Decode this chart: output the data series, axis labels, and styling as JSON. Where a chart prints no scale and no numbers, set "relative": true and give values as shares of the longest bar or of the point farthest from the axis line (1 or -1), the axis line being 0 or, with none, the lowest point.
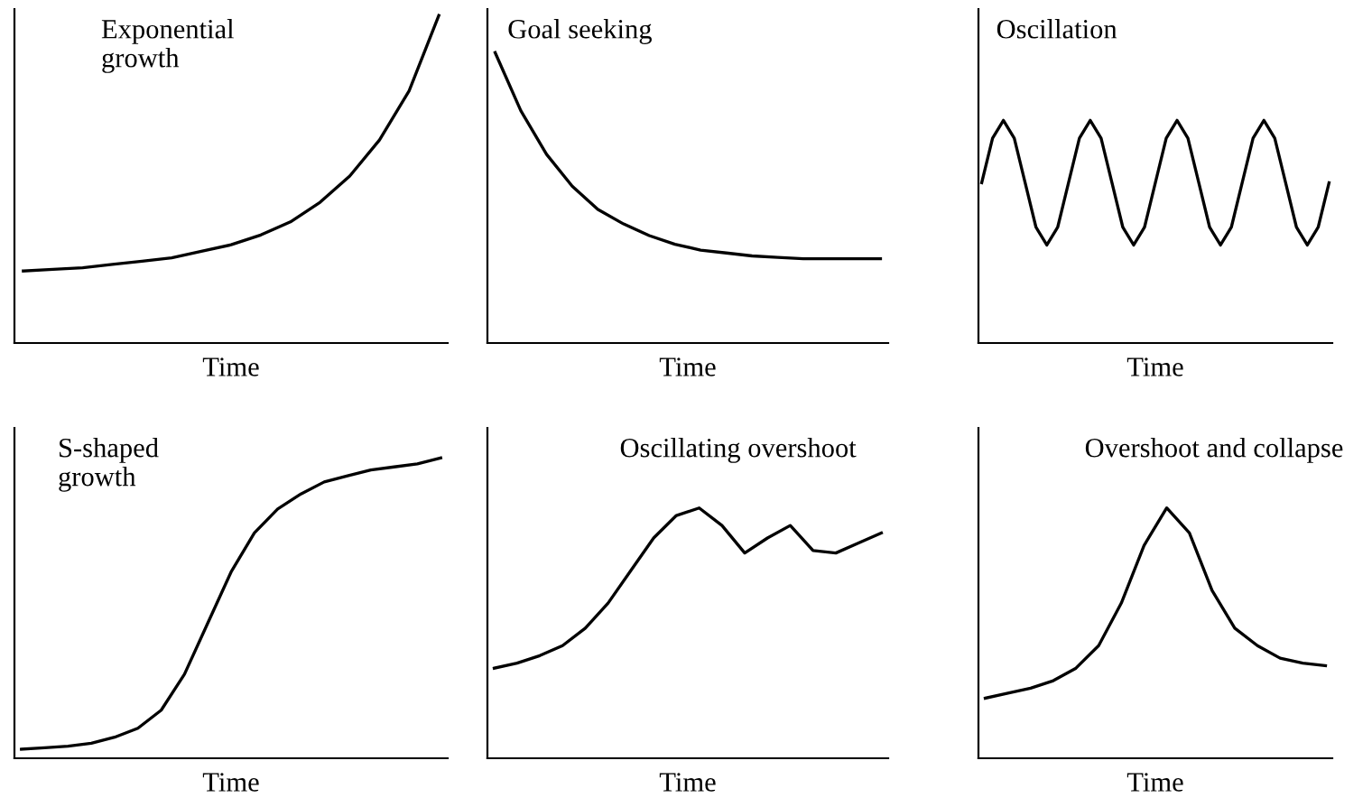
{
  "chart_data": [
    {
      "type": "line",
      "relative": true,
      "title": "Exponential\ngrowth",
      "xlabel": "Time",
      "color": "#000000",
      "categories": [
        null,
        null,
        null,
        null,
        null,
        null,
        null,
        null,
        null,
        null,
        null,
        null,
        null,
        null,
        null
      ],
      "values": [
        0.22,
        0.225,
        0.23,
        0.24,
        0.25,
        0.26,
        0.28,
        0.3,
        0.33,
        0.37,
        0.43,
        0.51,
        0.62,
        0.77,
        1.0
      ]
    },
    {
      "type": "line",
      "relative": true,
      "title": "Goal seeking",
      "xlabel": "Time",
      "color": "#000000",
      "categories": [
        null,
        null,
        null,
        null,
        null,
        null,
        null,
        null,
        null,
        null,
        null,
        null,
        null,
        null,
        null,
        null
      ],
      "values": [
        1.0,
        0.8,
        0.65,
        0.54,
        0.46,
        0.41,
        0.37,
        0.34,
        0.32,
        0.31,
        0.3,
        0.295,
        0.29,
        0.29,
        0.29,
        0.29
      ]
    },
    {
      "type": "line",
      "relative": true,
      "title": "Oscillation",
      "xlabel": "Time",
      "color": "#000000",
      "categories": [
        null,
        null,
        null,
        null,
        null,
        null,
        null,
        null,
        null,
        null,
        null,
        null,
        null,
        null,
        null,
        null,
        null,
        null,
        null,
        null,
        null,
        null,
        null,
        null,
        null,
        null,
        null,
        null,
        null,
        null,
        null,
        null,
        null
      ],
      "values": [
        0.72,
        0.92,
        1.0,
        0.92,
        0.72,
        0.52,
        0.44,
        0.52,
        0.72,
        0.92,
        1.0,
        0.92,
        0.72,
        0.52,
        0.44,
        0.52,
        0.72,
        0.92,
        1.0,
        0.92,
        0.72,
        0.52,
        0.44,
        0.52,
        0.72,
        0.92,
        1.0,
        0.92,
        0.72,
        0.52,
        0.44,
        0.52,
        0.72
      ]
    },
    {
      "type": "line",
      "relative": true,
      "title": "S-shaped\ngrowth",
      "xlabel": "Time",
      "color": "#000000",
      "categories": [
        null,
        null,
        null,
        null,
        null,
        null,
        null,
        null,
        null,
        null,
        null,
        null,
        null,
        null,
        null,
        null,
        null,
        null,
        null
      ],
      "values": [
        0.03,
        0.035,
        0.04,
        0.05,
        0.07,
        0.1,
        0.16,
        0.28,
        0.45,
        0.62,
        0.75,
        0.83,
        0.88,
        0.92,
        0.94,
        0.96,
        0.97,
        0.98,
        1.0
      ]
    },
    {
      "type": "line",
      "relative": true,
      "title": "Oscillating overshoot",
      "xlabel": "Time",
      "color": "#000000",
      "categories": [
        null,
        null,
        null,
        null,
        null,
        null,
        null,
        null,
        null,
        null,
        null,
        null,
        null,
        null,
        null,
        null,
        null,
        null
      ],
      "values": [
        0.36,
        0.38,
        0.41,
        0.45,
        0.52,
        0.62,
        0.75,
        0.88,
        0.97,
        1.0,
        0.93,
        0.82,
        0.88,
        0.93,
        0.83,
        0.82,
        0.86,
        0.9
      ]
    },
    {
      "type": "line",
      "relative": true,
      "title": "Overshoot and collapse",
      "xlabel": "Time",
      "color": "#000000",
      "categories": [
        null,
        null,
        null,
        null,
        null,
        null,
        null,
        null,
        null,
        null,
        null,
        null,
        null,
        null,
        null,
        null
      ],
      "values": [
        0.24,
        0.26,
        0.28,
        0.31,
        0.36,
        0.45,
        0.62,
        0.85,
        1.0,
        0.9,
        0.67,
        0.52,
        0.45,
        0.4,
        0.38,
        0.37
      ]
    }
  ]
}
